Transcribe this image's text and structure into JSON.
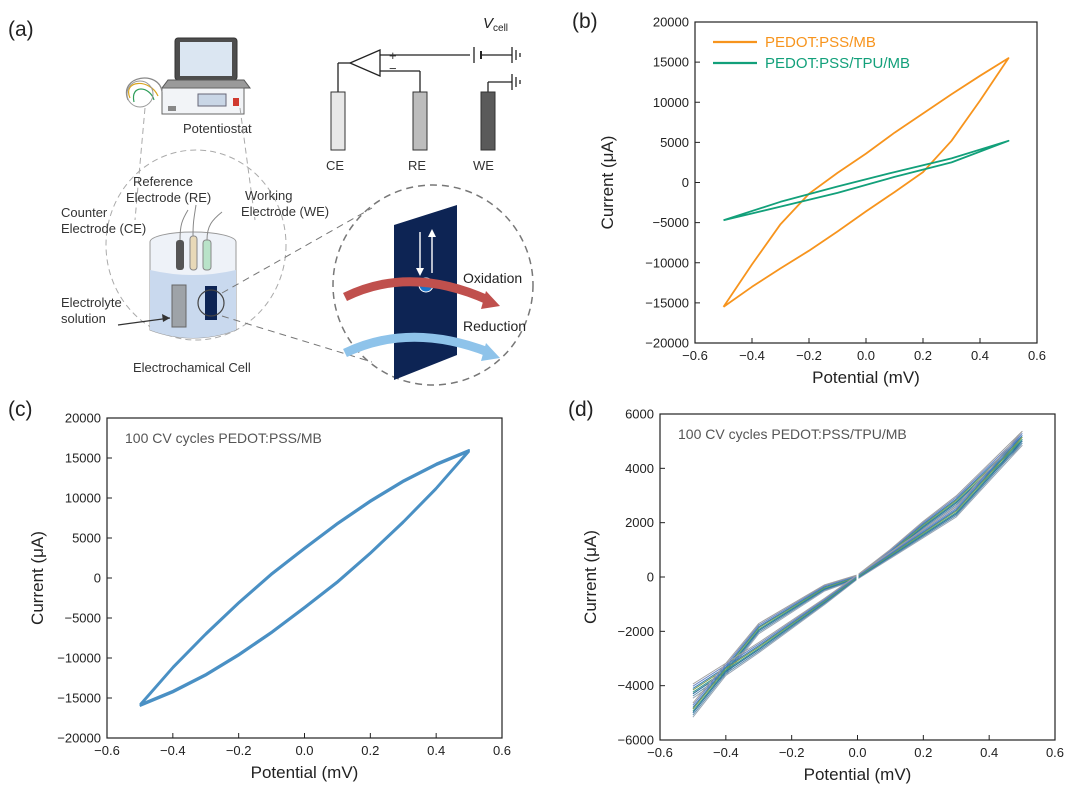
{
  "panels": {
    "a": "(a)",
    "b": "(b)",
    "c": "(c)",
    "d": "(d)"
  },
  "schematic": {
    "potentiostat": "Potentiostat",
    "ce": "CE",
    "re": "RE",
    "we": "WE",
    "v_main": "V",
    "v_sub": "cell",
    "counter_1": "Counter",
    "counter_2": "Electrode (CE)",
    "reference_1": "Reference",
    "reference_2": "Electrode (RE)",
    "working_1": "Working",
    "working_2": "Electrode (WE)",
    "electrolyte_1": "Electrolyte",
    "electrolyte_2": "solution",
    "cell": "Electrochamical Cell",
    "oxidation": "Oxidation",
    "reduction": "Reduction",
    "electron": "−",
    "colors": {
      "blue_panel": "#0d2454",
      "oxidation_arrow": "#c0504d",
      "reduction_arrow": "#8ec3ea",
      "beaker": "#c9d9ee"
    }
  },
  "chart_data": [
    {
      "id": "b",
      "type": "line",
      "xlabel": "Potential (mV)",
      "ylabel": "Current (μA)",
      "xlim": [
        -0.6,
        0.6
      ],
      "ylim": [
        -20000,
        20000
      ],
      "xticks": [
        -0.6,
        -0.4,
        -0.2,
        0.0,
        0.2,
        0.4,
        0.6
      ],
      "xtick_labels": [
        "−0.6",
        "−0.4",
        "−0.2",
        "0.0",
        "0.2",
        "0.4",
        "0.6"
      ],
      "yticks": [
        -20000,
        -15000,
        -10000,
        -5000,
        0,
        5000,
        10000,
        15000,
        20000
      ],
      "ytick_labels": [
        "−20000",
        "−15000",
        "−10000",
        "−5000",
        "0",
        "5000",
        "10000",
        "15000",
        "20000"
      ],
      "legend_position": "top-left",
      "series": [
        {
          "name": "PEDOT:PSS/MB",
          "color": "#f7941d",
          "x": [
            -0.5,
            -0.4,
            -0.3,
            -0.2,
            -0.1,
            0.0,
            0.1,
            0.2,
            0.3,
            0.4,
            0.5,
            0.4,
            0.3,
            0.2,
            0.1,
            0.0,
            -0.1,
            -0.2,
            -0.3,
            -0.4,
            -0.5
          ],
          "y": [
            -15500,
            -13000,
            -10700,
            -8500,
            -6100,
            -3600,
            -1200,
            1300,
            5200,
            10200,
            15500,
            13300,
            11000,
            8600,
            6200,
            3600,
            1200,
            -1400,
            -5200,
            -10200,
            -15500
          ]
        },
        {
          "name": "PEDOT:PSS/TPU/MB",
          "color": "#12a07a",
          "x": [
            -0.5,
            -0.3,
            -0.1,
            0.1,
            0.3,
            0.5,
            0.3,
            0.1,
            -0.1,
            -0.3,
            -0.5
          ],
          "y": [
            -4700,
            -3000,
            -1300,
            700,
            2500,
            5200,
            3000,
            1300,
            -500,
            -2400,
            -4700
          ]
        }
      ]
    },
    {
      "id": "c",
      "type": "line",
      "annotation": "100 CV cycles PEDOT:PSS/MB",
      "xlabel": "Potential (mV)",
      "ylabel": "Current (μA)",
      "xlim": [
        -0.6,
        0.6
      ],
      "ylim": [
        -20000,
        20000
      ],
      "xticks": [
        -0.6,
        -0.4,
        -0.2,
        0.0,
        0.2,
        0.4,
        0.6
      ],
      "xtick_labels": [
        "−0.6",
        "−0.4",
        "−0.2",
        "0.0",
        "0.2",
        "0.4",
        "0.6"
      ],
      "yticks": [
        -20000,
        -15000,
        -10000,
        -5000,
        0,
        5000,
        10000,
        15000,
        20000
      ],
      "ytick_labels": [
        "−20000",
        "−15000",
        "−10000",
        "−5000",
        "0",
        "5000",
        "10000",
        "15000",
        "20000"
      ],
      "series": [
        {
          "color": "#4a90c4",
          "x": [
            -0.5,
            -0.4,
            -0.3,
            -0.2,
            -0.1,
            0.0,
            0.1,
            0.2,
            0.3,
            0.4,
            0.5,
            0.4,
            0.3,
            0.2,
            0.1,
            0.0,
            -0.1,
            -0.2,
            -0.3,
            -0.4,
            -0.5
          ],
          "y": [
            -15900,
            -14200,
            -12100,
            -9600,
            -6800,
            -3700,
            -500,
            3100,
            7000,
            11200,
            15900,
            14200,
            12100,
            9600,
            6800,
            3700,
            500,
            -3100,
            -7000,
            -11200,
            -15900
          ]
        }
      ]
    },
    {
      "id": "d",
      "type": "line",
      "annotation": "100 CV cycles PEDOT:PSS/TPU/MB",
      "xlabel": "Potential (mV)",
      "ylabel": "Current (μA)",
      "xlim": [
        -0.6,
        0.6
      ],
      "ylim": [
        -6000,
        6000
      ],
      "xticks": [
        -0.6,
        -0.4,
        -0.2,
        0.0,
        0.2,
        0.4,
        0.6
      ],
      "xtick_labels": [
        "−0.6",
        "−0.4",
        "−0.2",
        "0.0",
        "0.2",
        "0.4",
        "0.6"
      ],
      "yticks": [
        -6000,
        -4000,
        -2000,
        0,
        2000,
        4000,
        6000
      ],
      "ytick_labels": [
        "−6000",
        "−4000",
        "−2000",
        "0",
        "2000",
        "4000",
        "6000"
      ],
      "series": [
        {
          "color": "#3a7fb8",
          "x": [
            -0.5,
            -0.3,
            -0.1,
            0.0,
            0.1,
            0.2,
            0.3,
            0.5,
            0.3,
            0.1,
            0.0,
            -0.1,
            -0.3,
            -0.5
          ],
          "y": [
            -4200,
            -2600,
            -900,
            0,
            900,
            1900,
            2800,
            5100,
            2400,
            800,
            0,
            -400,
            -1900,
            -4900
          ]
        }
      ]
    }
  ]
}
